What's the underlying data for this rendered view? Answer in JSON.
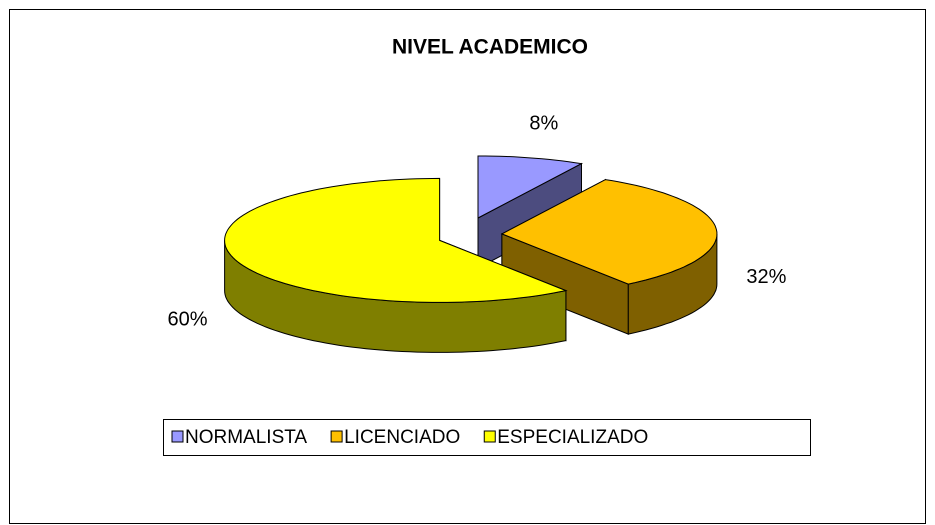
{
  "chart_data": {
    "type": "pie3d",
    "title": "NIVEL ACADEMICO",
    "categories": [
      "NORMALISTA",
      "LICENCIADO",
      "ESPECIALIZADO"
    ],
    "values": [
      8,
      32,
      60
    ],
    "value_labels": [
      "8%",
      "32%",
      "60%"
    ],
    "colors": [
      "#9999ff",
      "#ffc000",
      "#ffff00"
    ],
    "legend": "bottom"
  }
}
